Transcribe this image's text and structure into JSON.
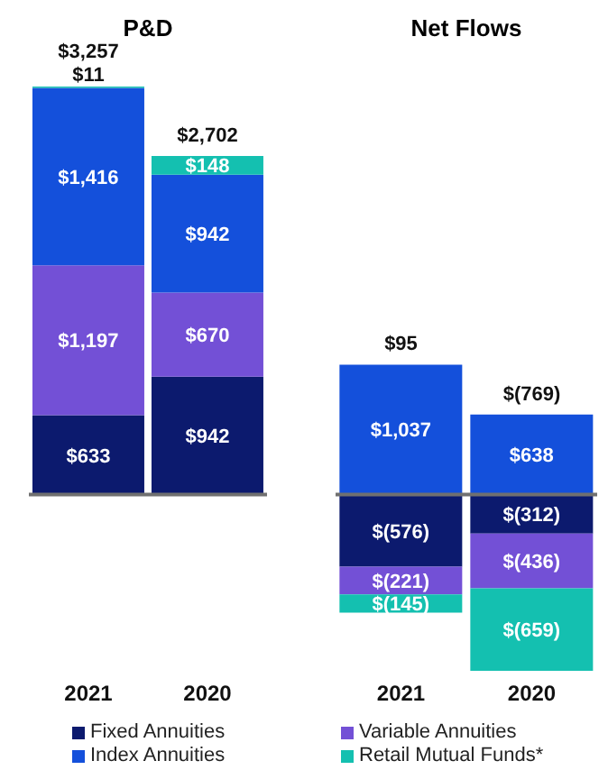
{
  "chart_data": [
    {
      "type": "bar",
      "title": "P&D",
      "categories": [
        "2021",
        "2020"
      ],
      "stacked": true,
      "tick_labels": "x",
      "legend": "bottom",
      "ref_lines": [
        {
          "axis": "y",
          "value": 0,
          "color": "#707070"
        }
      ],
      "series": [
        {
          "name": "Fixed Annuities",
          "color": "#0c1a6e",
          "values": [
            633,
            942
          ],
          "value_labels": [
            "$633",
            "$942"
          ]
        },
        {
          "name": "Variable Annuities",
          "color": "#7350d6",
          "values": [
            1197,
            670
          ],
          "value_labels": [
            "$1,197",
            "$670"
          ]
        },
        {
          "name": "Index Annuities",
          "color": "#1450db",
          "values": [
            1416,
            942
          ],
          "value_labels": [
            "$1,416",
            "$942"
          ]
        },
        {
          "name": "Retail Mutual Funds*",
          "color": "#14c0b0",
          "values": [
            11,
            148
          ],
          "value_labels": [
            "$11",
            "$148"
          ]
        }
      ],
      "totals": [
        "$3,257",
        "$2,702"
      ]
    },
    {
      "type": "bar",
      "title": "Net Flows",
      "categories": [
        "2021",
        "2020"
      ],
      "stacked": true,
      "tick_labels": "x",
      "ref_lines": [
        {
          "axis": "y",
          "value": 0,
          "color": "#707070"
        }
      ],
      "series": [
        {
          "color": "#0c1a6e",
          "values": [
            -576,
            -312
          ],
          "value_labels": [
            "$(576)",
            "$(312)"
          ]
        },
        {
          "color": "#7350d6",
          "values": [
            -221,
            -436
          ],
          "value_labels": [
            "$(221)",
            "$(436)"
          ]
        },
        {
          "color": "#1450db",
          "values": [
            1037,
            638
          ],
          "value_labels": [
            "$1,037",
            "$638"
          ]
        },
        {
          "color": "#14c0b0",
          "values": [
            -145,
            -659
          ],
          "value_labels": [
            "$(145)",
            "$(659)"
          ]
        }
      ],
      "totals": [
        "$95",
        "$(769)"
      ]
    }
  ]
}
